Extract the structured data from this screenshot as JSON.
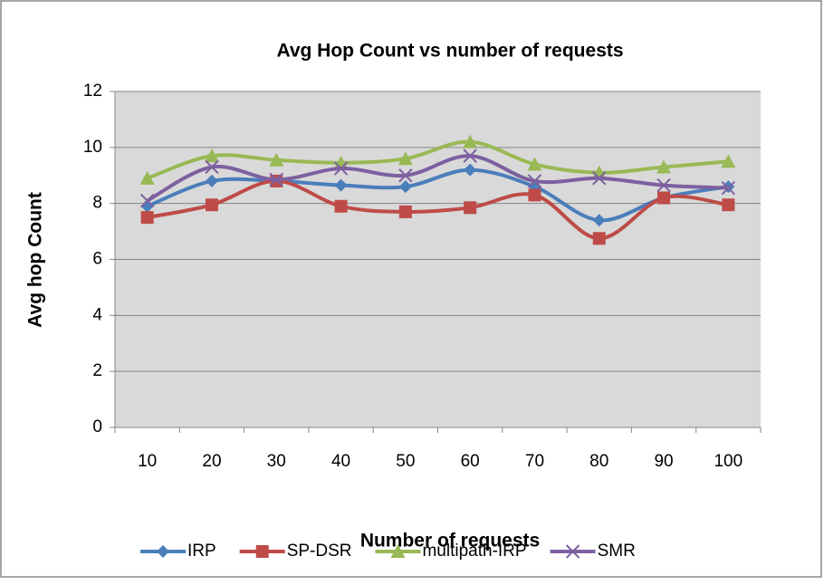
{
  "chart_data": {
    "type": "line",
    "title": "Avg  Hop Count  vs   number of  requests",
    "x_label": "Number of  requests",
    "y_label": "Avg  hop  Count",
    "categories": [
      "10",
      "20",
      "30",
      "40",
      "50",
      "60",
      "70",
      "80",
      "90",
      "100"
    ],
    "series": [
      {
        "name": "IRP",
        "color": "#4a7ebb",
        "marker": "diamond",
        "values": [
          7.9,
          8.8,
          8.8,
          8.65,
          8.6,
          9.2,
          8.6,
          7.4,
          8.2,
          8.6
        ]
      },
      {
        "name": "SP-DSR",
        "color": "#be4b48",
        "marker": "square",
        "values": [
          7.5,
          7.95,
          8.8,
          7.9,
          7.7,
          7.85,
          8.3,
          6.75,
          8.2,
          7.95
        ]
      },
      {
        "name": "multipath-IRP",
        "color": "#98b954",
        "marker": "triangle",
        "values": [
          8.9,
          9.7,
          9.55,
          9.45,
          9.6,
          10.2,
          9.4,
          9.1,
          9.3,
          9.5
        ]
      },
      {
        "name": "SMR",
        "color": "#7d60a0",
        "marker": "x",
        "values": [
          8.1,
          9.3,
          8.85,
          9.25,
          9.0,
          9.7,
          8.8,
          8.9,
          8.65,
          8.55
        ]
      }
    ],
    "ylim": [
      0,
      12
    ],
    "yticks": [
      0,
      2,
      4,
      6,
      8,
      10,
      12
    ],
    "grid": true,
    "smooth": true,
    "legend": "bottom"
  }
}
